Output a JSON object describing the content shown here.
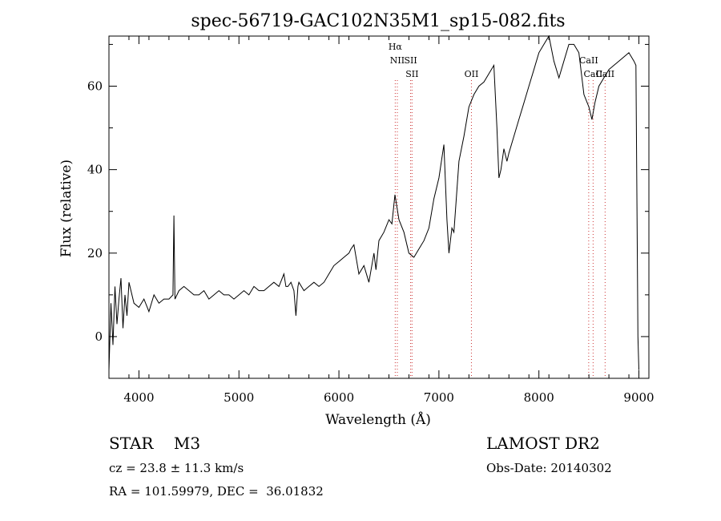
{
  "chart_data": {
    "type": "line",
    "title": "spec-56719-GAC102N35M1_sp15-082.fits",
    "xlabel": "Wavelength (Å)",
    "ylabel": "Flux (relative)",
    "xlim": [
      3700,
      9100
    ],
    "ylim": [
      -10,
      72
    ],
    "xticks": [
      4000,
      5000,
      6000,
      7000,
      8000,
      9000
    ],
    "yticks": [
      0,
      20,
      40,
      60
    ],
    "grid": false,
    "line_color": "#000000",
    "marker_color": "#cc3333",
    "spectral_lines": [
      {
        "label": "Hα",
        "x": 6563,
        "row": 0
      },
      {
        "label": "NII",
        "x": 6584,
        "row": 1
      },
      {
        "label": "SII",
        "x": 6717,
        "row": 1
      },
      {
        "label": "SII",
        "x": 6731,
        "row": 2
      },
      {
        "label": "OII",
        "x": 7325,
        "row": 2
      },
      {
        "label": "CaII",
        "x": 8498,
        "row": 1
      },
      {
        "label": "CaII",
        "x": 8542,
        "row": 2
      },
      {
        "label": "CaII",
        "x": 8662,
        "row": 2
      }
    ],
    "series": [
      {
        "x": [
          3700,
          3720,
          3740,
          3760,
          3780,
          3800,
          3820,
          3840,
          3860,
          3880,
          3900,
          3950,
          4000,
          4050,
          4100,
          4150,
          4200,
          4250,
          4300,
          4340,
          4350,
          4360,
          4380,
          4400,
          4450,
          4500,
          4550,
          4600,
          4650,
          4700,
          4750,
          4800,
          4850,
          4900,
          4950,
          5000,
          5050,
          5100,
          5150,
          5200,
          5250,
          5300,
          5350,
          5400,
          5450,
          5470,
          5490,
          5520,
          5550,
          5570,
          5590,
          5600,
          5650,
          5700,
          5750,
          5800,
          5850,
          5900,
          5950,
          6000,
          6050,
          6100,
          6120,
          6150,
          6200,
          6250,
          6300,
          6350,
          6370,
          6400,
          6450,
          6500,
          6530,
          6560,
          6600,
          6650,
          6700,
          6750,
          6800,
          6850,
          6900,
          6950,
          7000,
          7050,
          7080,
          7100,
          7130,
          7150,
          7200,
          7250,
          7300,
          7350,
          7400,
          7450,
          7500,
          7550,
          7580,
          7600,
          7620,
          7650,
          7680,
          7700,
          7750,
          7800,
          7850,
          7900,
          7950,
          8000,
          8050,
          8100,
          8150,
          8200,
          8250,
          8300,
          8350,
          8400,
          8450,
          8500,
          8530,
          8560,
          8600,
          8650,
          8700,
          8750,
          8800,
          8850,
          8900,
          8950,
          8970,
          8990,
          9000
        ],
        "values": [
          -8,
          8,
          -2,
          12,
          3,
          9,
          14,
          2,
          10,
          5,
          13,
          8,
          7,
          9,
          6,
          10,
          8,
          9,
          9,
          10,
          29,
          9,
          10,
          11,
          12,
          11,
          10,
          10,
          11,
          9,
          10,
          11,
          10,
          10,
          9,
          10,
          11,
          10,
          12,
          11,
          11,
          12,
          13,
          12,
          15,
          12,
          12,
          13,
          11,
          5,
          12,
          13,
          11,
          12,
          13,
          12,
          13,
          15,
          17,
          18,
          19,
          20,
          21,
          22,
          15,
          17,
          13,
          20,
          16,
          23,
          25,
          28,
          27,
          34,
          28,
          25,
          20,
          19,
          21,
          23,
          26,
          33,
          38,
          46,
          28,
          20,
          26,
          25,
          42,
          48,
          55,
          58,
          60,
          61,
          63,
          65,
          50,
          38,
          40,
          45,
          42,
          44,
          48,
          52,
          56,
          60,
          64,
          68,
          70,
          72,
          66,
          62,
          66,
          70,
          70,
          68,
          58,
          55,
          52,
          56,
          60,
          62,
          64,
          65,
          66,
          67,
          68,
          66,
          65,
          0,
          -8
        ]
      }
    ]
  },
  "info": {
    "star_line": "STAR    M3",
    "cz_line": "cz = 23.8 ± 11.3 km/s",
    "radec_line": "RA = 101.59979, DEC =  36.01832",
    "survey_line": "LAMOST DR2",
    "obsdate_line": "Obs-Date: 20140302"
  }
}
